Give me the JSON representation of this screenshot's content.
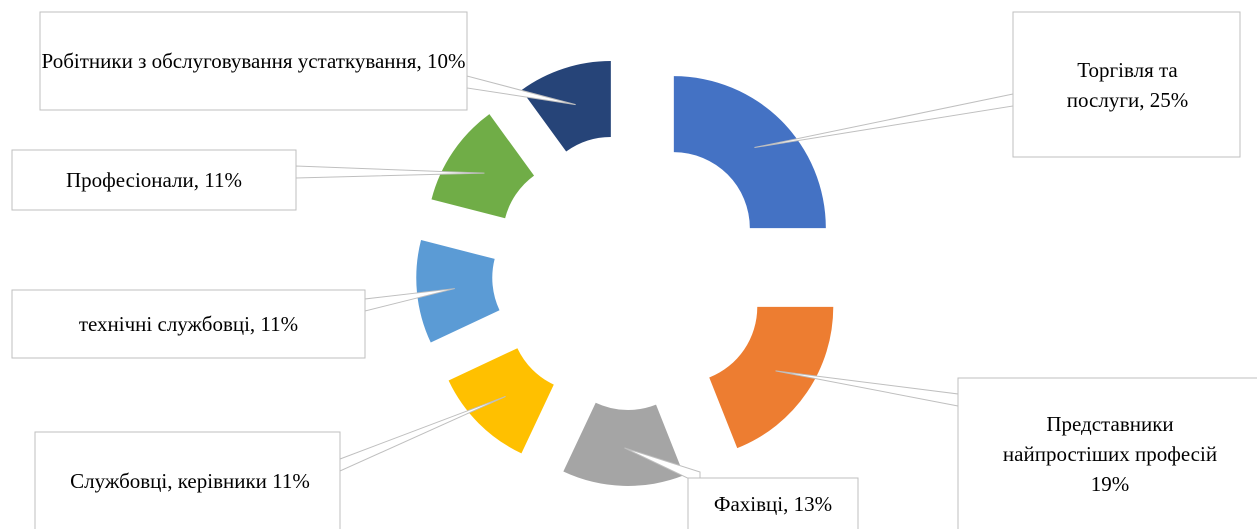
{
  "chart_data": {
    "type": "doughnut",
    "values": [
      25,
      19,
      13,
      11,
      11,
      11,
      10
    ],
    "value_labels": [
      "Торгівля та послуги, 25%",
      "Представники найпростіших професій 19%",
      "Фахівці, 13%",
      "Службовці, керівники 11%",
      "технічні службовці, 11%",
      "Професіонали, 11%",
      "Робітники з обслуговування устаткування, 10%"
    ],
    "colors": [
      "#4472c4",
      "#ed7d31",
      "#a5a5a5",
      "#ffc000",
      "#5b9bd5",
      "#70ad47",
      "#264478"
    ]
  }
}
